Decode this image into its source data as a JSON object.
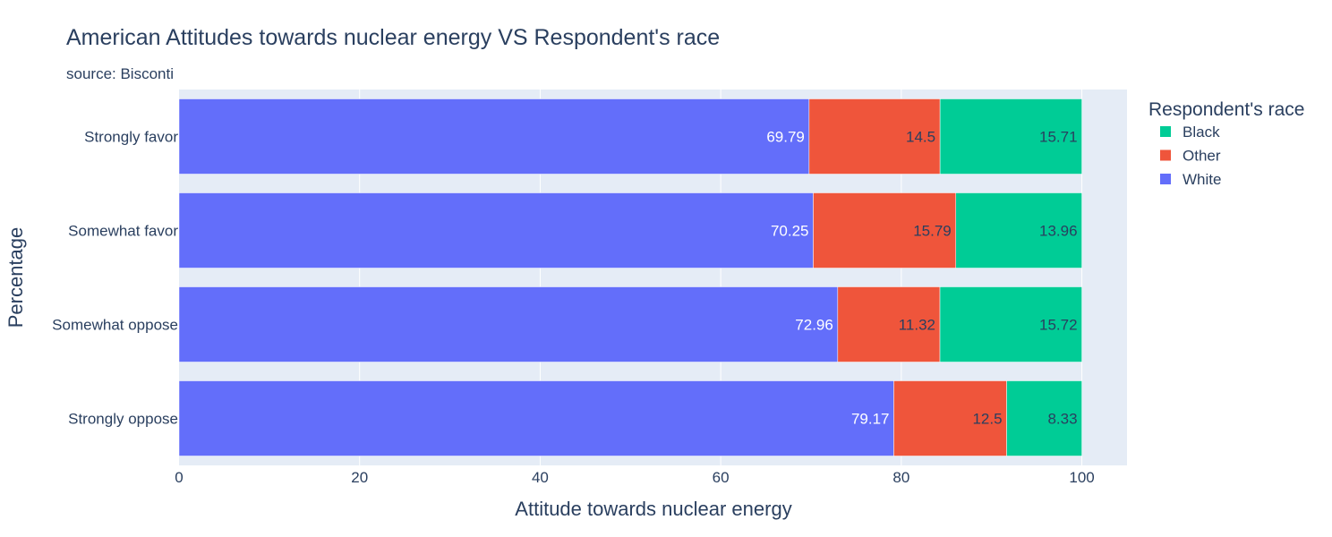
{
  "chart_data": {
    "type": "bar",
    "orientation": "horizontal",
    "barmode": "stack",
    "title": "American Attitudes towards nuclear energy VS Respondent's race",
    "subtitle": "source: Bisconti",
    "xlabel": "Attitude towards nuclear energy",
    "ylabel": "Percentage",
    "xlim": [
      0,
      105
    ],
    "xticks": [
      0,
      20,
      40,
      60,
      80,
      100
    ],
    "grid": true,
    "categories": [
      "Strongly favor",
      "Somewhat favor",
      "Somewhat oppose",
      "Strongly oppose"
    ],
    "series": [
      {
        "name": "White",
        "color": "#636efa",
        "label_color": "#ffffff",
        "values": [
          69.79,
          70.25,
          72.96,
          79.17
        ]
      },
      {
        "name": "Other",
        "color": "#ef553b",
        "label_color": "#2a3f5f",
        "values": [
          14.5,
          15.79,
          11.32,
          12.5
        ]
      },
      {
        "name": "Black",
        "color": "#00cc96",
        "label_color": "#2a3f5f",
        "values": [
          15.71,
          13.96,
          15.72,
          8.33
        ]
      }
    ],
    "legend": {
      "title": "Respondent's race",
      "placement": "top-right",
      "order": [
        "Black",
        "Other",
        "White"
      ]
    },
    "colors": {
      "plot_background": "#e5ecf6",
      "gridline": "#ffffff",
      "text": "#2a3f5f"
    }
  }
}
